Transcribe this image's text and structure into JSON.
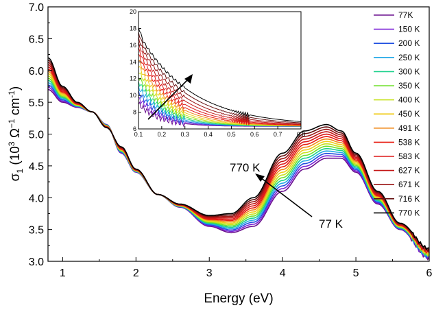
{
  "chart_data": {
    "type": "line",
    "xlabel": "Energy (eV)",
    "ylabel": {
      "symbol": "σ",
      "subscript": "1",
      "lead": " (10",
      "exp1": "3",
      "mid": " Ω",
      "exp2": "−1",
      "mid2": " cm",
      "exp3": "-1",
      "tail": ")"
    },
    "xlim": [
      0.8,
      6.0
    ],
    "ylim": [
      3.0,
      7.0
    ],
    "xticks": [
      "1",
      "2",
      "3",
      "4",
      "5",
      "6"
    ],
    "yticks": [
      "3.0",
      "3.5",
      "4.0",
      "4.5",
      "5.0",
      "5.5",
      "6.0",
      "6.5",
      "7.0"
    ],
    "legend_position": "right",
    "series": [
      {
        "name": "77K",
        "color": "#6a0f8e"
      },
      {
        "name": "150 K",
        "color": "#7a21d6"
      },
      {
        "name": "200 K",
        "color": "#1f4fe0"
      },
      {
        "name": "250 K",
        "color": "#22a8e6"
      },
      {
        "name": "300 K",
        "color": "#18d08a"
      },
      {
        "name": "350 K",
        "color": "#6fe12a"
      },
      {
        "name": "400 K",
        "color": "#c6e21c"
      },
      {
        "name": "450 K",
        "color": "#f0cc1a"
      },
      {
        "name": "491 K",
        "color": "#f08a1a"
      },
      {
        "name": "538 K",
        "color": "#e81e12"
      },
      {
        "name": "583 K",
        "color": "#dd1818"
      },
      {
        "name": "627 K",
        "color": "#c41616"
      },
      {
        "name": "671 K",
        "color": "#9a1515"
      },
      {
        "name": "716 K",
        "color": "#641010"
      },
      {
        "name": "770 K",
        "color": "#000000"
      }
    ],
    "curve_params": {
      "x": [
        0.8,
        1.0,
        1.2,
        1.4,
        1.6,
        1.8,
        2.0,
        2.3,
        2.6,
        3.0,
        3.3,
        3.6,
        4.0,
        4.3,
        4.6,
        4.8,
        5.0,
        5.3,
        5.6,
        6.0
      ],
      "y_77K": [
        5.7,
        5.5,
        5.42,
        5.35,
        5.15,
        4.7,
        4.4,
        4.05,
        3.85,
        3.55,
        3.45,
        3.55,
        4.1,
        4.45,
        4.62,
        4.62,
        4.4,
        3.9,
        3.5,
        3.05
      ],
      "y_770K": [
        6.2,
        5.75,
        5.5,
        5.35,
        5.1,
        4.8,
        4.45,
        4.05,
        3.9,
        3.72,
        3.75,
        4.0,
        4.7,
        5.05,
        5.15,
        5.05,
        4.7,
        4.1,
        3.6,
        3.2
      ]
    },
    "annotations": {
      "high": "770 K",
      "low": "77 K"
    },
    "inset": {
      "xlim": [
        0.1,
        0.8
      ],
      "ylim": [
        6,
        20
      ],
      "xticks": [
        "0.1",
        "0.2",
        "0.3",
        "0.4",
        "0.5",
        "0.6",
        "0.7",
        "0.8"
      ],
      "yticks": [
        "6",
        "8",
        "10",
        "12",
        "14",
        "16",
        "18",
        "20"
      ],
      "y_at_x0.12_77K": 8.5,
      "y_at_x0.12_770K": 16.5,
      "y_at_x0.8": 6.3
    }
  }
}
